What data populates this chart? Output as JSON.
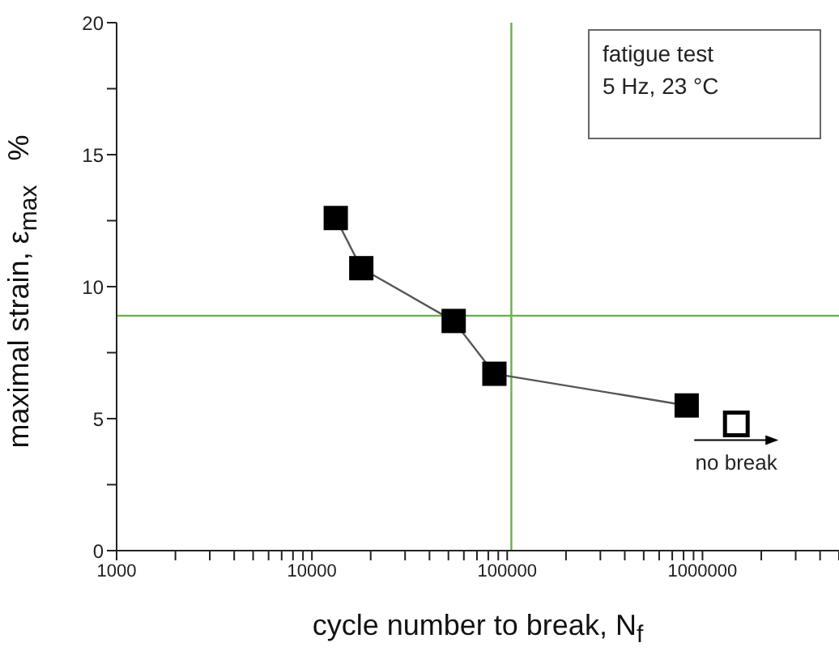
{
  "chart_data": {
    "type": "line",
    "xlabel": "cycle number to break, N$_{f}$",
    "ylabel": "maximal strain, ε$_{max}$   %",
    "series": [
      {
        "color": "#000000",
        "x": [
          13250,
          17900,
          53200,
          86000,
          830000
        ],
        "values": [
          12.6,
          10.7,
          8.7,
          6.7,
          5.5
        ]
      },
      {
        "type": "scatter",
        "color": "#000000",
        "x": [
          1490000
        ],
        "values": [
          4.8
        ]
      }
    ],
    "marker": "square",
    "log": "x",
    "xlim": [
      1000,
      5000000
    ],
    "xticks": [
      1000,
      {
        "value": 2000,
        "label": null
      },
      {
        "value": 3000,
        "label": null
      },
      {
        "value": 4000,
        "label": null
      },
      {
        "value": 5000,
        "label": null
      },
      {
        "value": 6000,
        "label": null
      },
      {
        "value": 7000,
        "label": null
      },
      {
        "value": 8000,
        "label": null
      },
      {
        "value": 9000,
        "label": null
      },
      10000,
      {
        "value": 20000,
        "label": null
      },
      {
        "value": 30000,
        "label": null
      },
      {
        "value": 40000,
        "label": null
      },
      {
        "value": 50000,
        "label": null
      },
      {
        "value": 60000,
        "label": null
      },
      {
        "value": 70000,
        "label": null
      },
      {
        "value": 80000,
        "label": null
      },
      {
        "value": 90000,
        "label": null
      },
      100000,
      {
        "value": 200000,
        "label": null
      },
      {
        "value": 300000,
        "label": null
      },
      {
        "value": 400000,
        "label": null
      },
      {
        "value": 500000,
        "label": null
      },
      {
        "value": 600000,
        "label": null
      },
      {
        "value": 700000,
        "label": null
      },
      {
        "value": 800000,
        "label": null
      },
      {
        "value": 900000,
        "label": null
      },
      1000000,
      {
        "value": 2000000,
        "label": null
      },
      {
        "value": 3000000,
        "label": null
      },
      {
        "value": 4000000,
        "label": null
      },
      {
        "value": 5000000,
        "label": null
      }
    ],
    "ylim": [
      0,
      20
    ],
    "yticks": [
      0,
      {
        "value": 2.5,
        "label": null
      },
      5,
      {
        "value": 7.5,
        "label": null
      },
      10,
      {
        "value": 12.5,
        "label": null
      },
      15,
      {
        "value": 17.5,
        "label": null
      },
      20
    ],
    "ref_lines": [
      {
        "axis": "y",
        "value": 8.9,
        "color": "#6ab04c"
      },
      {
        "axis": "x",
        "value": 105000,
        "color": "#6ab04c"
      }
    ],
    "annotations": [
      "fatigue test",
      "5 Hz, 23 °C",
      "no break"
    ],
    "grid": false,
    "legend": false
  }
}
